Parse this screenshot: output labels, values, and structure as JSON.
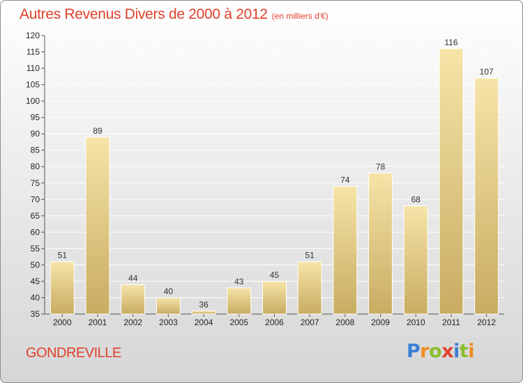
{
  "title": "Autres Revenus Divers de 2000 à 2012",
  "subtitle": "(en milliers d'€)",
  "place": "GONDREVILLE",
  "logo": {
    "text": "Proxiti",
    "letter_colors": [
      "#3a7fd5",
      "#f08a1c",
      "#8bbd2e",
      "#e0402b",
      "#3a7fd5",
      "#8bbd2e",
      "#f08a1c"
    ]
  },
  "colors": {
    "title": "#e0402b",
    "bar_light": "#f6e4a8",
    "bar_dark": "#c8ac62",
    "grid": "#ffffff"
  },
  "chart_data": {
    "type": "bar",
    "categories": [
      "2000",
      "2001",
      "2002",
      "2003",
      "2004",
      "2005",
      "2006",
      "2007",
      "2008",
      "2009",
      "2010",
      "2011",
      "2012"
    ],
    "values": [
      51,
      89,
      44,
      40,
      36,
      43,
      45,
      51,
      74,
      78,
      68,
      116,
      107
    ],
    "ylim": [
      35,
      120
    ],
    "yticks": [
      35,
      40,
      45,
      50,
      55,
      60,
      65,
      70,
      75,
      80,
      85,
      90,
      95,
      100,
      105,
      110,
      115,
      120
    ],
    "grid": true,
    "data_labels": true
  }
}
